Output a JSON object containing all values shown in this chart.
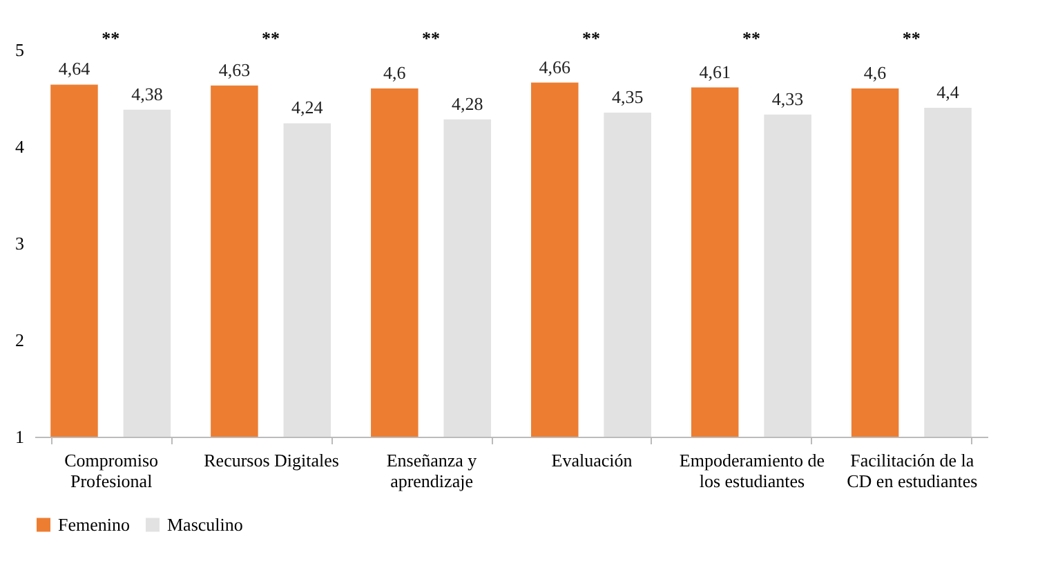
{
  "chart_data": {
    "type": "bar",
    "categories": [
      "Compromiso Profesional",
      "Recursos Digitales",
      "Enseñanza y aprendizaje",
      "Evaluación",
      "Empoderamiento de los estudiantes",
      "Facilitación de la CD en estudiantes"
    ],
    "series": [
      {
        "name": "Femenino",
        "color": "#ed7d31",
        "values": [
          4.64,
          4.63,
          4.6,
          4.66,
          4.61,
          4.6
        ],
        "value_labels": [
          "4,64",
          "4,63",
          "4,6",
          "4,66",
          "4,61",
          "4,6"
        ]
      },
      {
        "name": "Masculino",
        "color": "#e2e2e2",
        "values": [
          4.38,
          4.24,
          4.28,
          4.35,
          4.33,
          4.4
        ],
        "value_labels": [
          "4,38",
          "4,24",
          "4,28",
          "4,35",
          "4,33",
          "4,4"
        ]
      }
    ],
    "ylim": [
      1,
      5
    ],
    "yticks": [
      1,
      2,
      3,
      4,
      5
    ],
    "grid": false,
    "legend": "bottom",
    "annotations": [
      "**",
      "**",
      "**",
      "**",
      "**",
      "**"
    ]
  }
}
